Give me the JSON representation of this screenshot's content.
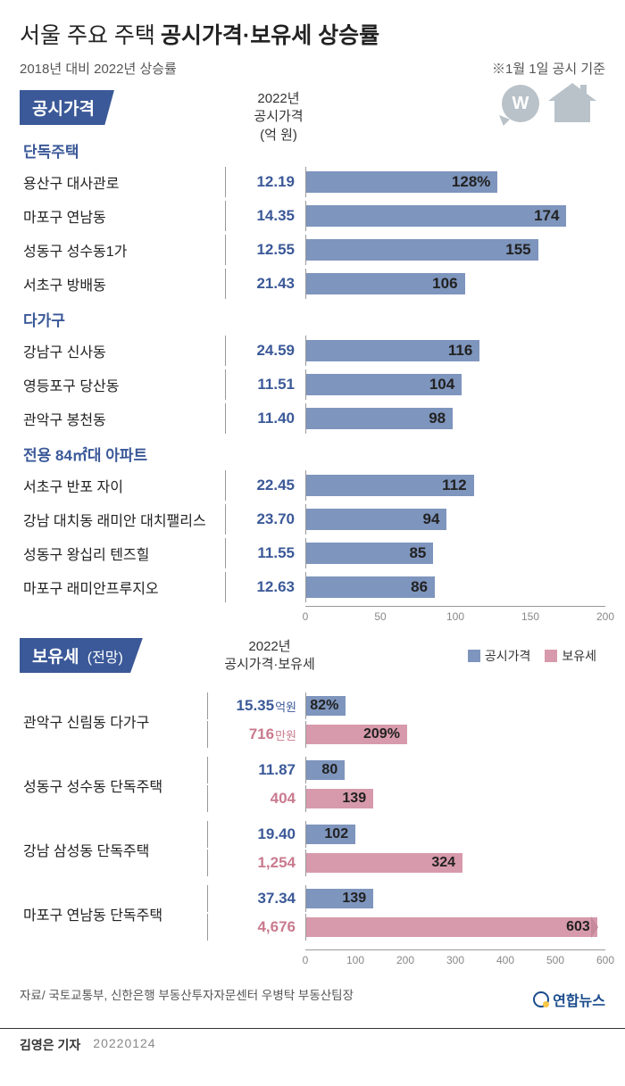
{
  "title_prefix": "서울 주요 주택",
  "title_main": "공시가격·보유세 상승률",
  "subtitle": "2018년 대비 2022년 상승률",
  "note_right": "※1월 1일 공시 기준",
  "section1": {
    "tag": "공시가격",
    "col_header_line1": "2022년",
    "col_header_line2": "공시가격",
    "col_header_line3": "(억 원)",
    "xmax": 200,
    "ticks": [
      "0",
      "50",
      "100",
      "150",
      "200"
    ],
    "groups": [
      {
        "label": "단독주택",
        "rows": [
          {
            "name": "용산구 대사관로",
            "value": "12.19",
            "pct": 128,
            "pct_label": "128%"
          },
          {
            "name": "마포구 연남동",
            "value": "14.35",
            "pct": 174,
            "pct_label": "174"
          },
          {
            "name": "성동구 성수동1가",
            "value": "12.55",
            "pct": 155,
            "pct_label": "155"
          },
          {
            "name": "서초구 방배동",
            "value": "21.43",
            "pct": 106,
            "pct_label": "106"
          }
        ]
      },
      {
        "label": "다가구",
        "rows": [
          {
            "name": "강남구 신사동",
            "value": "24.59",
            "pct": 116,
            "pct_label": "116"
          },
          {
            "name": "영등포구 당산동",
            "value": "11.51",
            "pct": 104,
            "pct_label": "104"
          },
          {
            "name": "관악구 봉천동",
            "value": "11.40",
            "pct": 98,
            "pct_label": "98"
          }
        ]
      },
      {
        "label": "전용 84㎡대 아파트",
        "rows": [
          {
            "name": "서초구 반포 자이",
            "value": "22.45",
            "pct": 112,
            "pct_label": "112"
          },
          {
            "name": "강남 대치동 래미안 대치팰리스",
            "value": "23.70",
            "pct": 94,
            "pct_label": "94"
          },
          {
            "name": "성동구 왕십리 텐즈힐",
            "value": "11.55",
            "pct": 85,
            "pct_label": "85"
          },
          {
            "name": "마포구 래미안프루지오",
            "value": "12.63",
            "pct": 86,
            "pct_label": "86"
          }
        ]
      }
    ]
  },
  "section2": {
    "tag": "보유세",
    "tag_note": "(전망)",
    "col_header_line1": "2022년",
    "col_header_line2": "공시가격·보유세",
    "legend_blue": "공시가격",
    "legend_pink": "보유세",
    "xmax": 620,
    "ticks": [
      "0",
      "100",
      "200",
      "300",
      "400",
      "500",
      "600"
    ],
    "rows": [
      {
        "name": "관악구 신림동 다가구",
        "blue_val": "15.35",
        "blue_unit": "억원",
        "blue_pct": 82,
        "blue_label": "82%",
        "pink_val": "716",
        "pink_unit": "만원",
        "pink_pct": 209,
        "pink_label": "209%"
      },
      {
        "name": "성동구 성수동 단독주택",
        "blue_val": "11.87",
        "blue_unit": "",
        "blue_pct": 80,
        "blue_label": "80",
        "pink_val": "404",
        "pink_unit": "",
        "pink_pct": 139,
        "pink_label": "139"
      },
      {
        "name": "강남 삼성동 단독주택",
        "blue_val": "19.40",
        "blue_unit": "",
        "blue_pct": 102,
        "blue_label": "102",
        "pink_val": "1,254",
        "pink_unit": "",
        "pink_pct": 324,
        "pink_label": "324"
      },
      {
        "name": "마포구 연남동 단독주택",
        "blue_val": "37.34",
        "blue_unit": "",
        "blue_pct": 139,
        "blue_label": "139",
        "pink_val": "4,676",
        "pink_unit": "",
        "pink_pct": 603,
        "pink_label": "603",
        "arrow": true
      }
    ]
  },
  "source": "자료/ 국토교통부, 신한은행 부동산투자자문센터 우병탁 부동산팀장",
  "logo_text": "연합뉴스",
  "reporter": "김영은 기자",
  "date": "20220124",
  "colors": {
    "blue_bar": "#7e95bd",
    "pink_bar": "#d79aac",
    "blue_text": "#3b5998",
    "pink_text": "#c97a8e"
  }
}
